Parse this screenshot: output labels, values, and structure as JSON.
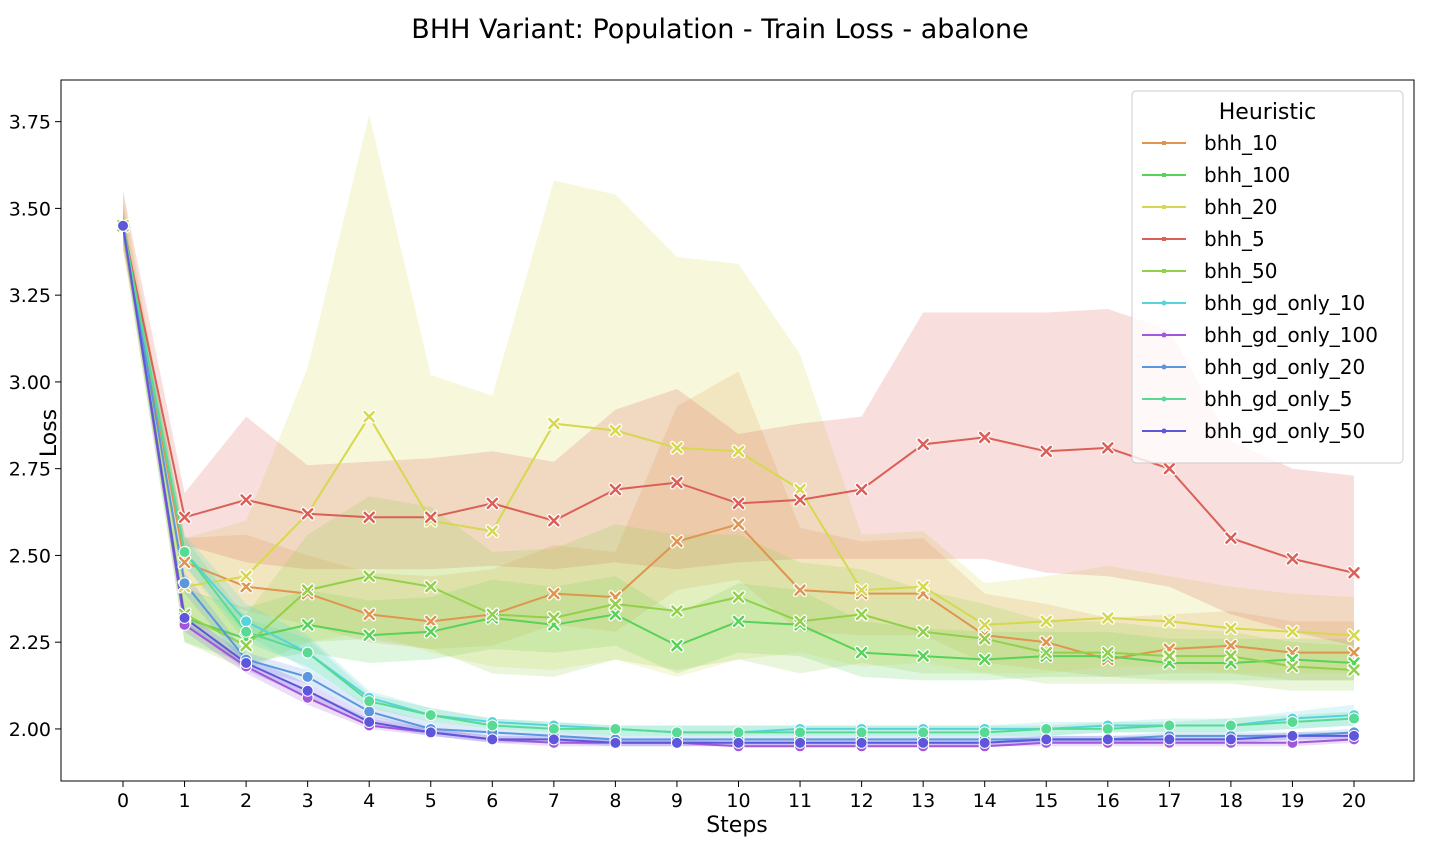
{
  "chart_data": {
    "type": "line",
    "title": "BHH Variant: Population - Train Loss - abalone",
    "xlabel": "Steps",
    "ylabel": "Loss",
    "xlim": [
      -1,
      21
    ],
    "ylim": [
      1.85,
      3.87
    ],
    "x_ticks": [
      0,
      1,
      2,
      3,
      4,
      5,
      6,
      7,
      8,
      9,
      10,
      11,
      12,
      13,
      14,
      15,
      16,
      17,
      18,
      19,
      20
    ],
    "y_ticks": [
      2.0,
      2.25,
      2.5,
      2.75,
      3.0,
      3.25,
      3.5,
      3.75
    ],
    "y_tick_labels": [
      "2.00",
      "2.25",
      "2.50",
      "2.75",
      "3.00",
      "3.25",
      "3.50",
      "3.75"
    ],
    "grid": false,
    "legend": {
      "title": "Heuristic",
      "position": "top-right"
    },
    "x": [
      0,
      1,
      2,
      3,
      4,
      5,
      6,
      7,
      8,
      9,
      10,
      11,
      12,
      13,
      14,
      15,
      16,
      17,
      18,
      19,
      20
    ],
    "series": [
      {
        "name": "bhh_10",
        "color": "#e0954f",
        "marker": "x",
        "values": [
          3.45,
          2.48,
          2.41,
          2.39,
          2.33,
          2.31,
          2.33,
          2.39,
          2.38,
          2.54,
          2.59,
          2.4,
          2.39,
          2.39,
          2.27,
          2.25,
          2.2,
          2.23,
          2.24,
          2.22,
          2.22
        ],
        "lower": [
          3.4,
          2.4,
          2.34,
          2.3,
          2.25,
          2.23,
          2.24,
          2.3,
          2.28,
          2.4,
          2.43,
          2.28,
          2.27,
          2.27,
          2.19,
          2.17,
          2.15,
          2.16,
          2.16,
          2.14,
          2.14
        ],
        "upper": [
          3.52,
          2.55,
          2.56,
          2.5,
          2.45,
          2.44,
          2.46,
          2.53,
          2.51,
          2.93,
          3.03,
          2.58,
          2.54,
          2.55,
          2.39,
          2.36,
          2.32,
          2.33,
          2.34,
          2.31,
          2.31
        ]
      },
      {
        "name": "bhh_100",
        "color": "#58d358",
        "marker": "x",
        "values": [
          3.45,
          2.32,
          2.26,
          2.3,
          2.27,
          2.28,
          2.32,
          2.3,
          2.33,
          2.24,
          2.31,
          2.3,
          2.22,
          2.21,
          2.2,
          2.21,
          2.21,
          2.19,
          2.19,
          2.2,
          2.19
        ],
        "lower": [
          3.4,
          2.25,
          2.19,
          2.22,
          2.19,
          2.2,
          2.23,
          2.22,
          2.24,
          2.16,
          2.22,
          2.21,
          2.15,
          2.14,
          2.14,
          2.15,
          2.15,
          2.14,
          2.14,
          2.14,
          2.14
        ],
        "upper": [
          3.5,
          2.4,
          2.35,
          2.4,
          2.37,
          2.38,
          2.43,
          2.41,
          2.44,
          2.33,
          2.42,
          2.4,
          2.31,
          2.29,
          2.28,
          2.28,
          2.28,
          2.26,
          2.26,
          2.26,
          2.26
        ]
      },
      {
        "name": "bhh_20",
        "color": "#d6d84f",
        "marker": "x",
        "values": [
          3.45,
          2.41,
          2.44,
          2.62,
          2.9,
          2.6,
          2.57,
          2.88,
          2.86,
          2.81,
          2.8,
          2.69,
          2.4,
          2.41,
          2.3,
          2.31,
          2.32,
          2.31,
          2.29,
          2.28,
          2.27
        ],
        "lower": [
          3.38,
          2.3,
          2.26,
          2.25,
          2.28,
          2.22,
          2.18,
          2.17,
          2.2,
          2.15,
          2.2,
          2.22,
          2.18,
          2.19,
          2.16,
          2.16,
          2.18,
          2.18,
          2.16,
          2.16,
          2.16
        ],
        "upper": [
          3.55,
          2.55,
          2.6,
          3.04,
          3.77,
          3.02,
          2.96,
          3.58,
          3.54,
          3.36,
          3.34,
          3.08,
          2.56,
          2.57,
          2.42,
          2.44,
          2.47,
          2.44,
          2.41,
          2.39,
          2.38
        ]
      },
      {
        "name": "bhh_5",
        "color": "#db5f57",
        "marker": "x",
        "values": [
          3.45,
          2.61,
          2.66,
          2.62,
          2.61,
          2.61,
          2.65,
          2.6,
          2.69,
          2.71,
          2.65,
          2.66,
          2.69,
          2.82,
          2.84,
          2.8,
          2.81,
          2.75,
          2.55,
          2.49,
          2.45
        ],
        "lower": [
          3.38,
          2.53,
          2.48,
          2.46,
          2.46,
          2.46,
          2.47,
          2.46,
          2.48,
          2.46,
          2.48,
          2.49,
          2.49,
          2.49,
          2.49,
          2.45,
          2.44,
          2.41,
          2.33,
          2.28,
          2.24
        ],
        "upper": [
          3.55,
          2.68,
          2.9,
          2.76,
          2.77,
          2.78,
          2.8,
          2.77,
          2.92,
          2.98,
          2.85,
          2.88,
          2.9,
          3.2,
          3.2,
          3.2,
          3.21,
          3.15,
          2.83,
          2.75,
          2.73
        ]
      },
      {
        "name": "bhh_50",
        "color": "#91d14a",
        "marker": "x",
        "values": [
          3.45,
          2.33,
          2.24,
          2.4,
          2.44,
          2.41,
          2.33,
          2.32,
          2.36,
          2.34,
          2.38,
          2.31,
          2.33,
          2.28,
          2.26,
          2.22,
          2.22,
          2.21,
          2.21,
          2.18,
          2.17
        ],
        "lower": [
          3.4,
          2.25,
          2.17,
          2.25,
          2.26,
          2.23,
          2.16,
          2.15,
          2.2,
          2.17,
          2.2,
          2.16,
          2.19,
          2.16,
          2.16,
          2.13,
          2.13,
          2.13,
          2.13,
          2.11,
          2.11
        ],
        "upper": [
          3.5,
          2.41,
          2.33,
          2.56,
          2.67,
          2.64,
          2.51,
          2.52,
          2.59,
          2.56,
          2.56,
          2.48,
          2.46,
          2.4,
          2.36,
          2.31,
          2.31,
          2.29,
          2.28,
          2.25,
          2.24
        ]
      },
      {
        "name": "bhh_gd_only_10",
        "color": "#57d3db",
        "marker": "o",
        "values": [
          3.45,
          2.51,
          2.31,
          2.22,
          2.09,
          2.04,
          2.02,
          2.01,
          2.0,
          1.99,
          1.99,
          2.0,
          2.0,
          2.0,
          2.0,
          2.0,
          2.01,
          2.01,
          2.01,
          2.03,
          2.04
        ],
        "lower": [
          3.42,
          2.47,
          2.27,
          2.17,
          2.07,
          2.02,
          2.0,
          1.99,
          1.98,
          1.98,
          1.98,
          1.98,
          1.98,
          1.98,
          1.98,
          1.98,
          1.99,
          1.99,
          1.99,
          2.0,
          2.01
        ],
        "upper": [
          3.48,
          2.56,
          2.36,
          2.27,
          2.11,
          2.06,
          2.03,
          2.02,
          2.01,
          2.01,
          2.01,
          2.01,
          2.01,
          2.01,
          2.01,
          2.02,
          2.02,
          2.03,
          2.03,
          2.05,
          2.07
        ]
      },
      {
        "name": "bhh_gd_only_100",
        "color": "#a157db",
        "marker": "o",
        "values": [
          3.45,
          2.3,
          2.18,
          2.09,
          2.01,
          1.99,
          1.97,
          1.96,
          1.96,
          1.96,
          1.95,
          1.95,
          1.95,
          1.95,
          1.95,
          1.96,
          1.96,
          1.96,
          1.96,
          1.96,
          1.97
        ],
        "lower": [
          3.42,
          2.28,
          2.16,
          2.07,
          2.0,
          1.98,
          1.96,
          1.95,
          1.95,
          1.95,
          1.95,
          1.95,
          1.95,
          1.95,
          1.95,
          1.95,
          1.95,
          1.95,
          1.95,
          1.95,
          1.96
        ],
        "upper": [
          3.48,
          2.31,
          2.19,
          2.11,
          2.03,
          2.0,
          1.98,
          1.97,
          1.97,
          1.97,
          1.96,
          1.96,
          1.96,
          1.96,
          1.96,
          1.97,
          1.97,
          1.97,
          1.97,
          1.97,
          1.98
        ]
      },
      {
        "name": "bhh_gd_only_20",
        "color": "#5a97df",
        "marker": "o",
        "values": [
          3.45,
          2.42,
          2.2,
          2.15,
          2.05,
          2.0,
          1.99,
          1.98,
          1.97,
          1.97,
          1.97,
          1.97,
          1.97,
          1.97,
          1.97,
          1.97,
          1.97,
          1.98,
          1.98,
          1.98,
          1.99
        ],
        "lower": [
          3.42,
          2.39,
          2.18,
          2.13,
          2.04,
          1.99,
          1.98,
          1.97,
          1.96,
          1.96,
          1.96,
          1.96,
          1.96,
          1.96,
          1.96,
          1.96,
          1.96,
          1.97,
          1.97,
          1.97,
          1.98
        ],
        "upper": [
          3.48,
          2.45,
          2.22,
          2.17,
          2.07,
          2.02,
          2.0,
          1.99,
          1.98,
          1.98,
          1.98,
          1.98,
          1.98,
          1.98,
          1.98,
          1.98,
          1.98,
          1.99,
          1.99,
          1.99,
          2.0
        ]
      },
      {
        "name": "bhh_gd_only_5",
        "color": "#57db94",
        "marker": "o",
        "values": [
          3.45,
          2.51,
          2.28,
          2.22,
          2.08,
          2.04,
          2.01,
          2.0,
          2.0,
          1.99,
          1.99,
          1.99,
          1.99,
          1.99,
          1.99,
          2.0,
          2.0,
          2.01,
          2.01,
          2.02,
          2.03
        ],
        "lower": [
          3.42,
          2.47,
          2.25,
          2.18,
          2.06,
          2.02,
          2.0,
          1.99,
          1.98,
          1.98,
          1.98,
          1.98,
          1.98,
          1.98,
          1.98,
          1.98,
          1.99,
          1.99,
          1.99,
          2.0,
          2.01
        ],
        "upper": [
          3.48,
          2.55,
          2.32,
          2.26,
          2.1,
          2.06,
          2.03,
          2.02,
          2.01,
          2.01,
          2.01,
          2.01,
          2.01,
          2.01,
          2.01,
          2.01,
          2.02,
          2.02,
          2.03,
          2.04,
          2.05
        ]
      },
      {
        "name": "bhh_gd_only_50",
        "color": "#5f57db",
        "marker": "o",
        "values": [
          3.45,
          2.32,
          2.19,
          2.11,
          2.02,
          1.99,
          1.97,
          1.97,
          1.96,
          1.96,
          1.96,
          1.96,
          1.96,
          1.96,
          1.96,
          1.97,
          1.97,
          1.97,
          1.97,
          1.98,
          1.98
        ],
        "lower": [
          3.42,
          2.3,
          2.17,
          2.09,
          2.01,
          1.98,
          1.96,
          1.96,
          1.95,
          1.95,
          1.95,
          1.95,
          1.95,
          1.95,
          1.95,
          1.96,
          1.96,
          1.96,
          1.96,
          1.97,
          1.97
        ],
        "upper": [
          3.48,
          2.34,
          2.21,
          2.13,
          2.04,
          2.0,
          1.98,
          1.98,
          1.97,
          1.97,
          1.97,
          1.97,
          1.97,
          1.97,
          1.97,
          1.98,
          1.98,
          1.98,
          1.98,
          1.99,
          1.99
        ]
      }
    ]
  }
}
